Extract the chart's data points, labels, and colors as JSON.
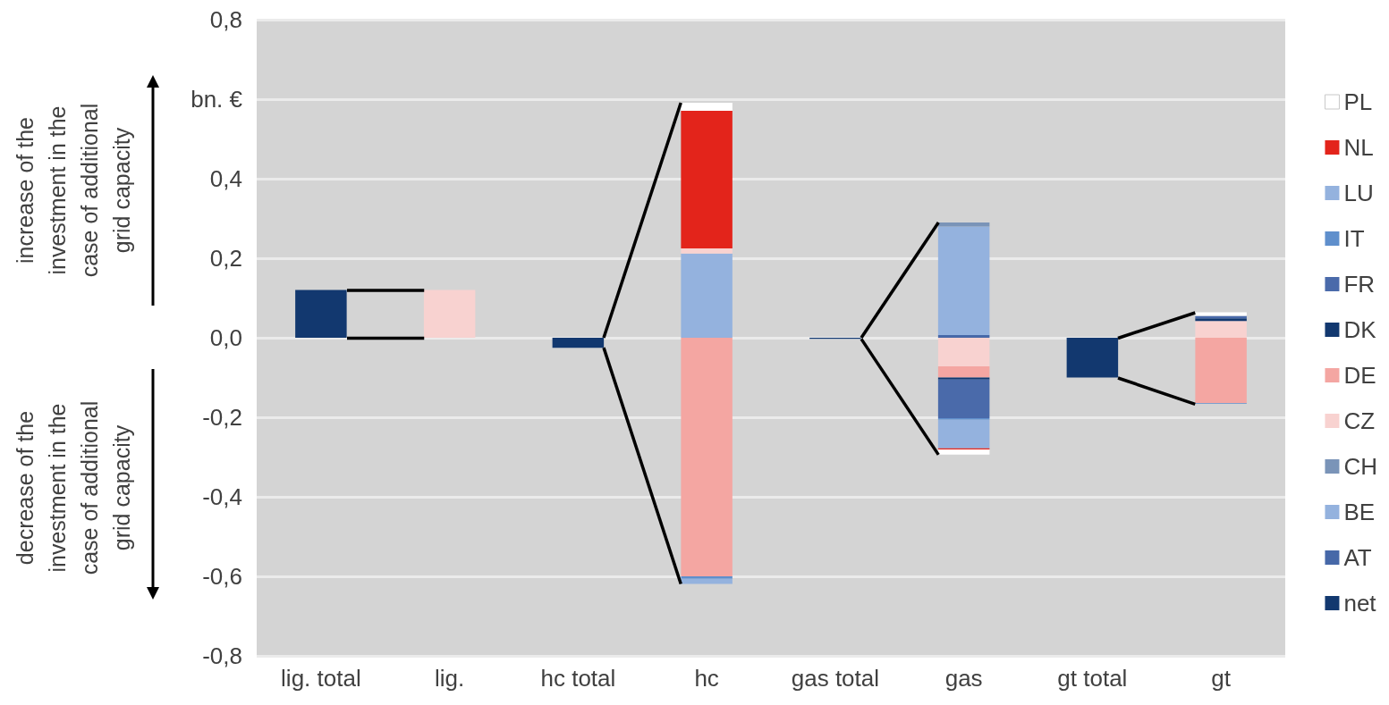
{
  "chart_data": {
    "type": "bar",
    "stacked": true,
    "annotations": [
      "increase of the investment in the case of additional grid capacity",
      "decrease of the investment in the case of additional grid capacity"
    ],
    "categories": [
      "lig. total",
      "lig.",
      "hc total",
      "hc",
      "gas total",
      "gas",
      "gt total",
      "gt"
    ],
    "series": [
      {
        "name": "net",
        "color": "#12386f",
        "values": [
          0.12,
          null,
          -0.025,
          null,
          -0.003,
          null,
          -0.1,
          null
        ]
      },
      {
        "name": "AT",
        "color": "#4668a8",
        "values": [
          null,
          null,
          null,
          null,
          null,
          0.007,
          null,
          null
        ]
      },
      {
        "name": "BE",
        "color": "#94b2de",
        "values": [
          null,
          null,
          null,
          0.212,
          null,
          0.273,
          null,
          null
        ]
      },
      {
        "name": "CH",
        "color": "#7a94b8",
        "values": [
          null,
          null,
          null,
          null,
          null,
          0.01,
          null,
          null
        ]
      },
      {
        "name": "CZ",
        "color": "#f8d2d0",
        "values": [
          null,
          0.12,
          null,
          0.013,
          null,
          -0.072,
          null,
          0.042
        ]
      },
      {
        "name": "DE",
        "color": "#f4a6a2",
        "values": [
          null,
          null,
          null,
          -0.6,
          null,
          -0.028,
          null,
          -0.164
        ]
      },
      {
        "name": "DK",
        "color": "#12386f",
        "values": [
          null,
          null,
          null,
          null,
          null,
          -0.005,
          null,
          0.007
        ]
      },
      {
        "name": "FR",
        "color": "#4a6aaa",
        "values": [
          null,
          null,
          null,
          null,
          null,
          -0.097,
          null,
          0.006
        ]
      },
      {
        "name": "IT",
        "color": "#5f8fcc",
        "values": [
          null,
          null,
          null,
          -0.006,
          null,
          -0.004,
          null,
          -0.002
        ]
      },
      {
        "name": "LU",
        "color": "#94b2de",
        "values": [
          null,
          null,
          null,
          -0.013,
          null,
          -0.072,
          null,
          null
        ]
      },
      {
        "name": "NL",
        "color": "#e3241b",
        "values": [
          null,
          null,
          null,
          0.346,
          null,
          -0.003,
          null,
          null
        ]
      },
      {
        "name": "PL",
        "color": "#ffffff",
        "values": [
          null,
          null,
          null,
          0.02,
          null,
          -0.013,
          null,
          0.009
        ]
      }
    ],
    "ylim": [
      -0.8,
      0.8
    ],
    "yticks": [
      {
        "value": -0.8,
        "label": "-0,8"
      },
      {
        "value": -0.6,
        "label": "-0,6"
      },
      {
        "value": -0.4,
        "label": "-0,4"
      },
      {
        "value": -0.2,
        "label": "-0,2"
      },
      {
        "value": 0,
        "label": "0,0"
      },
      {
        "value": 0.2,
        "label": "0,2"
      },
      {
        "value": 0.4,
        "label": "0,4"
      },
      {
        "value": 0.6,
        "label": "bn. €"
      },
      {
        "value": 0.8,
        "label": "0,8"
      }
    ],
    "grid": "y",
    "legend": "right"
  }
}
